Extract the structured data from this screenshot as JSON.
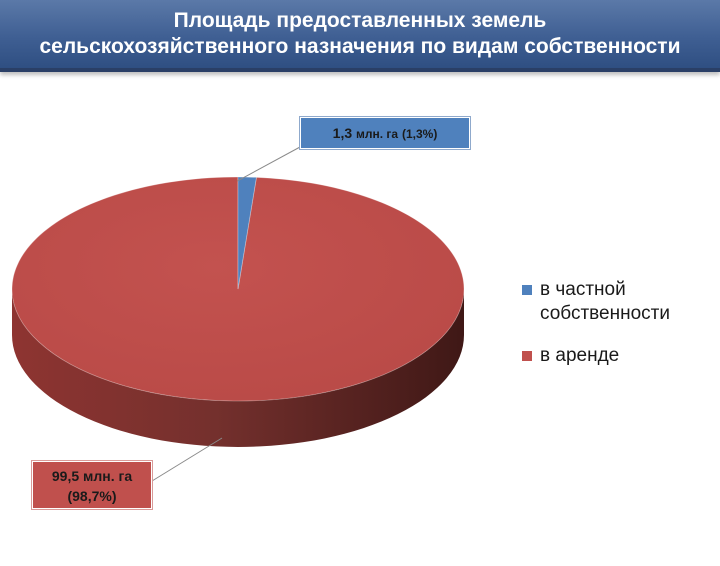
{
  "header": {
    "title_line1": "Площадь предоставленных земель",
    "title_line2": "сельскохозяйственного назначения по видам собственности"
  },
  "chart_data": {
    "type": "pie",
    "title": "Площадь предоставленных земель сельскохозяйственного назначения по видам собственности",
    "three_d": true,
    "legend_position": "right",
    "series": [
      {
        "name": "в частной собственности",
        "value": 1.3,
        "percent": 1.3,
        "unit": "млн. га",
        "color": "#4f81bd",
        "label_value": "1,3",
        "label_unit": "млн. га",
        "label_percent": "(1,3%)"
      },
      {
        "name": "в аренде",
        "value": 99.5,
        "percent": 98.7,
        "unit": "млн. га",
        "color": "#c0504d",
        "label_value": "99,5",
        "label_unit": "млн. га",
        "label_percent": "(98,7%)"
      }
    ]
  }
}
